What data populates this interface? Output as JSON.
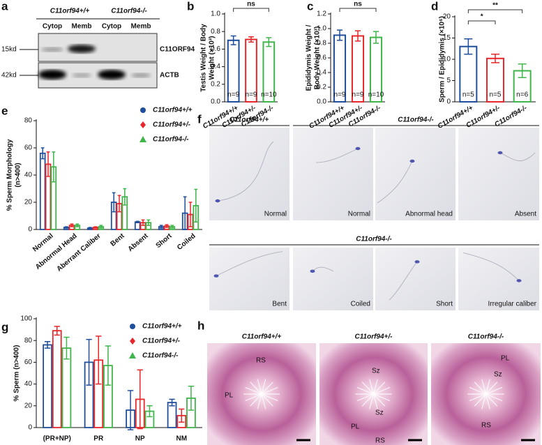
{
  "chart_data": [
    {
      "type": "bar",
      "label": "b",
      "ylabel": [
        "Testis Weight / Body",
        "Weight (×10³)"
      ],
      "categories": [
        "C11orf94+/+",
        "C11orf94+/-",
        "C11orf94-/-"
      ],
      "values": [
        0.7,
        0.71,
        0.68
      ],
      "errors": [
        0.05,
        0.03,
        0.05
      ],
      "colors": [
        "#1f4e9c",
        "#e8272a",
        "#3fb54a"
      ],
      "n_labels": [
        "n=9",
        "n=9",
        "n=10"
      ],
      "annotations": [
        "ns"
      ],
      "ylim": [
        0,
        1.0
      ],
      "yticks": [
        {
          "value": 0,
          "label": "0.0"
        },
        0.2,
        0.4,
        0.6,
        0.8,
        {
          "value": 1,
          "label": "1.0"
        }
      ]
    },
    {
      "type": "bar",
      "label": "c",
      "ylabel": [
        "Epididymis Weight /",
        "Body Weight (×10³)"
      ],
      "categories": [
        "C11orf94+/+",
        "C11orf94+/-",
        "C11orf94-/-"
      ],
      "values": [
        0.91,
        0.9,
        0.88
      ],
      "errors": [
        0.07,
        0.07,
        0.08
      ],
      "colors": [
        "#1f4e9c",
        "#e8272a",
        "#3fb54a"
      ],
      "n_labels": [
        "n=9",
        "n=9",
        "n=10"
      ],
      "annotations": [
        "ns"
      ],
      "ylim": [
        0,
        1.2
      ],
      "yticks": [
        {
          "value": 0,
          "label": "0.0"
        },
        0.2,
        0.4,
        0.6,
        0.8,
        {
          "value": 1,
          "label": "1.0"
        },
        1.2
      ]
    },
    {
      "type": "bar",
      "label": "d",
      "ylabel": [
        "Sperm / Epididymis (×10⁶)"
      ],
      "categories": [
        "C11orf94+/+",
        "C11orf94+/-",
        "C11orf94-/-"
      ],
      "values": [
        13,
        10.2,
        7.3
      ],
      "errors": [
        1.8,
        1.0,
        1.6
      ],
      "colors": [
        "#1f4e9c",
        "#e8272a",
        "#3fb54a"
      ],
      "n_labels": [
        "n=5",
        "n=5",
        "n=6"
      ],
      "annotations": [
        "*",
        "**"
      ],
      "ylim": [
        0,
        20
      ],
      "yticks": [
        0,
        5,
        10,
        15,
        20
      ]
    },
    {
      "type": "grouped-bar",
      "label": "e",
      "ylabel": [
        "% Sperm Morphology",
        "(n>400)"
      ],
      "legend": "upper right",
      "categories": [
        "Normal",
        "Abnormal Head",
        "Aberrant Caliber",
        "Bent",
        "Absent",
        "Short",
        "Coiled"
      ],
      "series": [
        {
          "name": "C11orf94+/+",
          "color": "#1f4e9c",
          "marker": "circle",
          "values": [
            56,
            1.5,
            1,
            20,
            5.5,
            2,
            12
          ],
          "errors": [
            4,
            0.5,
            0.5,
            7,
            0.5,
            1,
            12
          ]
        },
        {
          "name": "C11orf94+/-",
          "color": "#e8272a",
          "marker": "diamond",
          "values": [
            48,
            3,
            1.5,
            19,
            5,
            2.5,
            11
          ],
          "errors": [
            9,
            1,
            0.5,
            6,
            2,
            1,
            9
          ]
        },
        {
          "name": "C11orf94-/-",
          "color": "#3fb54a",
          "marker": "triangle",
          "values": [
            46,
            3,
            2,
            24,
            5,
            2,
            17.5
          ],
          "errors": [
            11,
            1,
            1,
            6,
            2,
            1,
            12
          ]
        }
      ],
      "ylim": [
        0,
        80
      ],
      "yticks": [
        0,
        20,
        40,
        60,
        80
      ]
    },
    {
      "type": "grouped-bar",
      "label": "g",
      "ylabel": [
        "% Sperm (n>400)"
      ],
      "legend": "upper right",
      "categories": [
        "(PR+NP)",
        "PR",
        "NP",
        "NM"
      ],
      "series": [
        {
          "name": "C11orf94+/+",
          "color": "#1f4e9c",
          "marker": "circle",
          "values": [
            76,
            60,
            16,
            23
          ],
          "errors": [
            3,
            21,
            18,
            3
          ]
        },
        {
          "name": "C11orf94+/-",
          "color": "#e8272a",
          "marker": "diamond",
          "values": [
            89,
            62,
            26,
            11
          ],
          "errors": [
            4,
            22,
            27,
            6
          ]
        },
        {
          "name": "C11orf94-/-",
          "color": "#3fb54a",
          "marker": "triangle",
          "values": [
            73,
            57,
            15,
            27
          ],
          "errors": [
            10,
            18,
            5,
            11
          ]
        }
      ],
      "ylim": [
        0,
        100
      ],
      "yticks": [
        0,
        20,
        40,
        60,
        80,
        100
      ]
    }
  ],
  "blot": {
    "label": "a",
    "genotypes": [
      "C11orf94+/+",
      "C11orf94-/-"
    ],
    "fractions": [
      "Cytop",
      "Memb",
      "Cytop",
      "Memb"
    ],
    "markers": [
      "15kd",
      "42kd"
    ],
    "proteins": [
      "C11ORF94",
      "ACTB"
    ]
  },
  "micrographs": {
    "label": "f",
    "top_titles": [
      "C11orf94+/+",
      "C11orf94-/-"
    ],
    "top_captions": [
      "Normal",
      "Normal",
      "Abnormal head",
      "Absent"
    ],
    "bottom_title": "C11orf94-/-",
    "bottom_captions": [
      "Bent",
      "Coiled",
      "Short",
      "Irregular caliber"
    ]
  },
  "histology": {
    "label": "h",
    "titles": [
      "C11orf94+/+",
      "C11orf94+/-",
      "C11orf94-/-"
    ],
    "cell_labels": [
      [
        "RS",
        "PL"
      ],
      [
        "Sz",
        "Sz",
        "PL",
        "RS"
      ],
      [
        "PL",
        "Sz",
        "RS"
      ]
    ]
  }
}
